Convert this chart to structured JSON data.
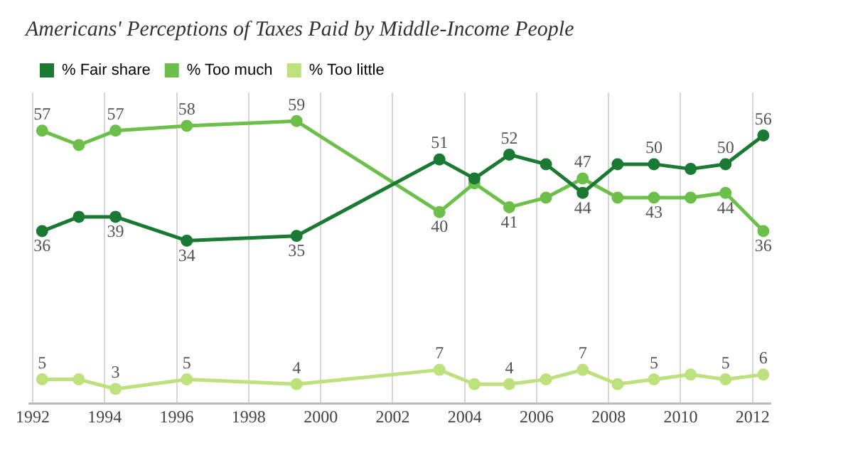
{
  "chart_data": {
    "type": "line",
    "title": "Americans' Perceptions of Taxes Paid by Middle-Income People",
    "x": [
      1992.26,
      1993.28,
      1994.3,
      1996.28,
      1999.33,
      2003.3,
      2004.27,
      2005.24,
      2006.26,
      2007.28,
      2008.25,
      2009.26,
      2010.28,
      2011.25,
      2012.3
    ],
    "series": [
      {
        "name": "% Fair share",
        "color": "#1a7a34",
        "values": [
          36,
          39,
          39,
          34,
          35,
          51,
          47,
          52,
          50,
          44,
          50,
          50,
          49,
          50,
          56
        ],
        "value_labels": [
          "36",
          null,
          "39",
          "34",
          "35",
          "51",
          null,
          "52",
          null,
          "44",
          null,
          "50",
          null,
          "50",
          "56"
        ]
      },
      {
        "name": "% Too much",
        "color": "#6cc04a",
        "values": [
          57,
          54,
          57,
          58,
          59,
          40,
          46,
          41,
          43,
          47,
          43,
          43,
          43,
          44,
          36
        ],
        "value_labels": [
          "57",
          null,
          "57",
          "58",
          "59",
          "40",
          null,
          "41",
          null,
          "47",
          null,
          "43",
          null,
          "44",
          "36"
        ]
      },
      {
        "name": "% Too little",
        "color": "#bde27d",
        "values": [
          5,
          5,
          3,
          5,
          4,
          7,
          4,
          4,
          5,
          7,
          4,
          5,
          6,
          5,
          6
        ],
        "value_labels": [
          "5",
          null,
          "3",
          "5",
          "4",
          "7",
          null,
          "4",
          null,
          "7",
          null,
          "5",
          null,
          "5",
          "6"
        ]
      }
    ],
    "xlim": [
      1991.9,
      2012.5
    ],
    "xticks": [
      1992,
      1994,
      1996,
      1998,
      2000,
      2002,
      2004,
      2006,
      2008,
      2010,
      2012
    ],
    "ylim": [
      0,
      65
    ],
    "tick_labels": "x",
    "grid": "x",
    "legend": "top left",
    "marker": "circle",
    "line_style": "solid"
  }
}
